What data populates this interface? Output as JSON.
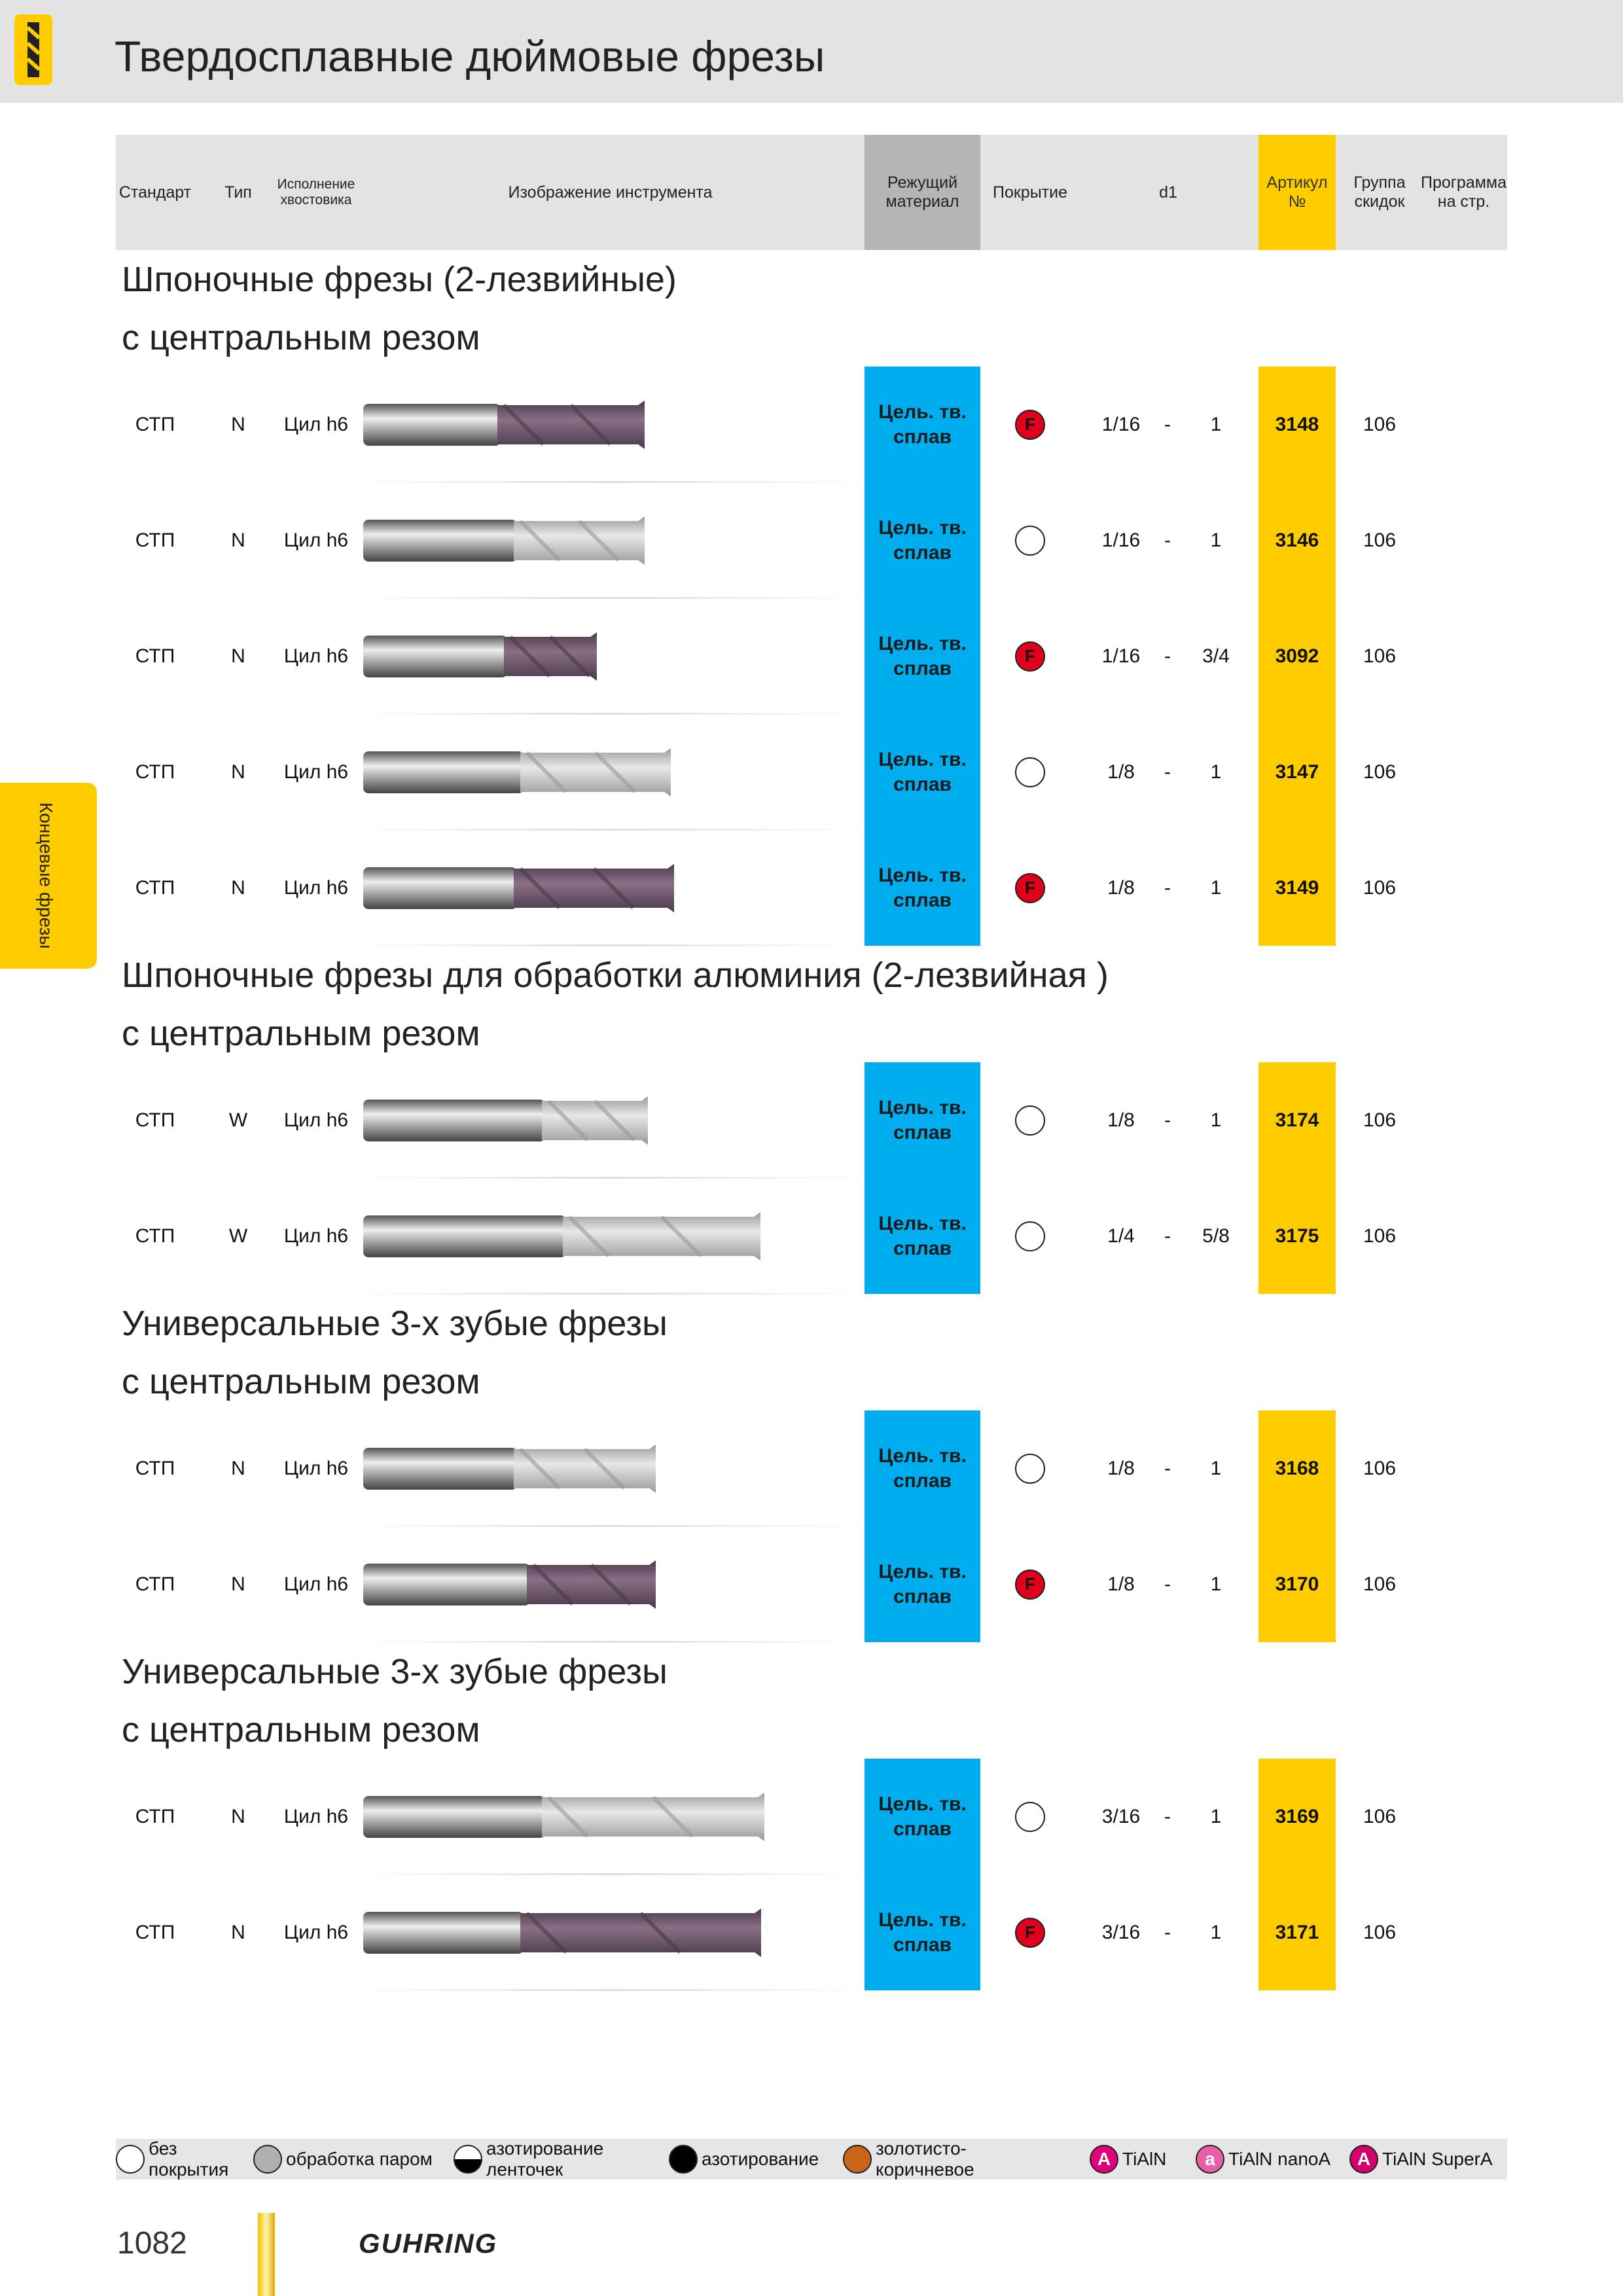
{
  "header": {
    "title": "Твердосплавные дюймовые фрезы"
  },
  "table": {
    "columns": [
      "Стандарт",
      "Тип",
      "Исполнение хвостовика",
      "Изображение инструмента",
      "Режущий материал",
      "Покрытие",
      "d1",
      "Артикул №",
      "Группа скидок",
      "Программа на стр."
    ],
    "sections": [
      {
        "title_lines": [
          "Шпоночные фрезы (2-лезвийные)",
          "с центральным резом"
        ],
        "rows": [
          {
            "standard": "СТП",
            "type": "N",
            "shank": "Цил h6",
            "material": "Цель. тв. сплав",
            "coating": "F",
            "d1_from": "1/16",
            "sep": "-",
            "d1_to": "1",
            "article": "3148",
            "group": "106"
          },
          {
            "standard": "СТП",
            "type": "N",
            "shank": "Цил h6",
            "material": "Цель. тв. сплав",
            "coating": null,
            "d1_from": "1/16",
            "sep": "-",
            "d1_to": "1",
            "article": "3146",
            "group": "106"
          },
          {
            "standard": "СТП",
            "type": "N",
            "shank": "Цил h6",
            "material": "Цель. тв. сплав",
            "coating": "F",
            "d1_from": "1/16",
            "sep": "-",
            "d1_to": "3/4",
            "article": "3092",
            "group": "106"
          },
          {
            "standard": "СТП",
            "type": "N",
            "shank": "Цил h6",
            "material": "Цель. тв. сплав",
            "coating": null,
            "d1_from": "1/8",
            "sep": "-",
            "d1_to": "1",
            "article": "3147",
            "group": "106"
          },
          {
            "standard": "СТП",
            "type": "N",
            "shank": "Цил h6",
            "material": "Цель. тв. сплав",
            "coating": "F",
            "d1_from": "1/8",
            "sep": "-",
            "d1_to": "1",
            "article": "3149",
            "group": "106"
          }
        ]
      },
      {
        "title_lines": [
          "Шпоночные фрезы для обработки алюминия (2-лезвийная )",
          "с центральным резом"
        ],
        "rows": [
          {
            "standard": "СТП",
            "type": "W",
            "shank": "Цил h6",
            "material": "Цель. тв. сплав",
            "coating": null,
            "d1_from": "1/8",
            "sep": "-",
            "d1_to": "1",
            "article": "3174",
            "group": "106"
          },
          {
            "standard": "СТП",
            "type": "W",
            "shank": "Цил h6",
            "material": "Цель. тв. сплав",
            "coating": null,
            "d1_from": "1/4",
            "sep": "-",
            "d1_to": "5/8",
            "article": "3175",
            "group": "106"
          }
        ]
      },
      {
        "title_lines": [
          "Универсальные 3-х зубые фрезы",
          "с центральным резом"
        ],
        "rows": [
          {
            "standard": "СТП",
            "type": "N",
            "shank": "Цил h6",
            "material": "Цель. тв. сплав",
            "coating": null,
            "d1_from": "1/8",
            "sep": "-",
            "d1_to": "1",
            "article": "3168",
            "group": "106"
          },
          {
            "standard": "СТП",
            "type": "N",
            "shank": "Цил h6",
            "material": "Цель. тв. сплав",
            "coating": "F",
            "d1_from": "1/8",
            "sep": "-",
            "d1_to": "1",
            "article": "3170",
            "group": "106"
          }
        ]
      },
      {
        "title_lines": [
          "Универсальные 3-х зубые фрезы",
          "с центральным резом"
        ],
        "rows": [
          {
            "standard": "СТП",
            "type": "N",
            "shank": "Цил h6",
            "material": "Цель. тв. сплав",
            "coating": null,
            "d1_from": "3/16",
            "sep": "-",
            "d1_to": "1",
            "article": "3169",
            "group": "106"
          },
          {
            "standard": "СТП",
            "type": "N",
            "shank": "Цил h6",
            "material": "Цель. тв. сплав",
            "coating": "F",
            "d1_from": "3/16",
            "sep": "-",
            "d1_to": "1",
            "article": "3171",
            "group": "106"
          }
        ]
      }
    ]
  },
  "side_tab": "Концевые фрезы",
  "legend": [
    {
      "label": "без покрытия",
      "color": "#ffffff"
    },
    {
      "label": "обработка паром",
      "color": "#b0b0b0"
    },
    {
      "label": "азотирование ленточек",
      "color": "half"
    },
    {
      "label": "азотирование",
      "color": "#000000"
    },
    {
      "label": "золотисто-коричневое",
      "color": "#c8651b"
    },
    {
      "icon": "A",
      "label": "TiAlN",
      "color": "#e2007a"
    },
    {
      "icon": "a",
      "label": "TiAlN nanoA",
      "color": "#e85fa8"
    },
    {
      "icon": "A",
      "label": "TiAlN SuperA",
      "color": "#d4006e"
    }
  ],
  "footer": {
    "page": "1082",
    "brand": "GUHRING"
  }
}
